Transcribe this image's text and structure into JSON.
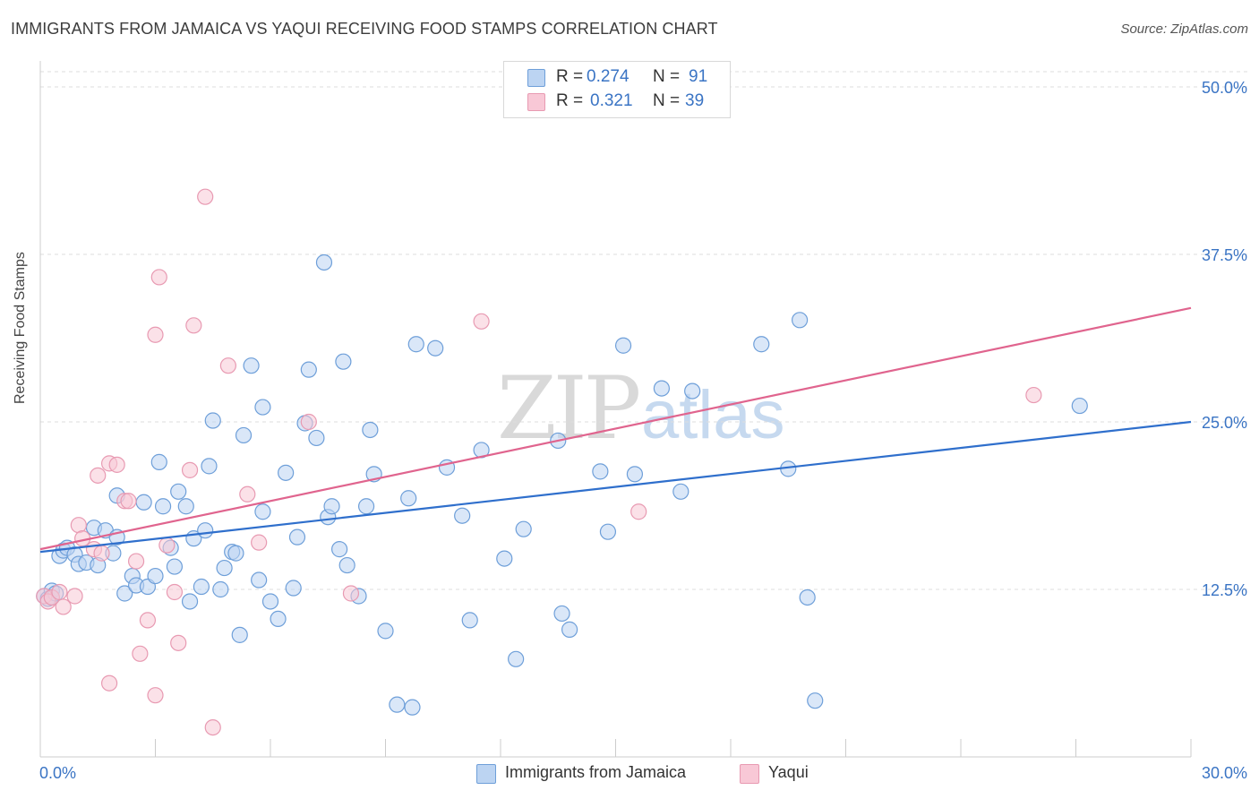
{
  "title": "IMMIGRANTS FROM JAMAICA VS YAQUI RECEIVING FOOD STAMPS CORRELATION CHART",
  "source": "Source: ZipAtlas.com",
  "watermark": {
    "zip": "ZIP",
    "atlas": "atlas"
  },
  "legend": {
    "rows": [
      {
        "r_label": "R =",
        "r_value": "0.274",
        "n_label": "N =",
        "n_value": "91"
      },
      {
        "r_label": "R =",
        "r_value": "0.321",
        "n_label": "N =",
        "n_value": "39"
      }
    ]
  },
  "bottom_legend": {
    "jamaica": "Immigrants from Jamaica",
    "yaqui": "Yaqui"
  },
  "colors": {
    "jamaica_fill": "#bcd4f2",
    "jamaica_stroke": "#6e9fd9",
    "jamaica_line": "#2f6fcc",
    "yaqui_fill": "#f8c8d6",
    "yaqui_stroke": "#e89ab2",
    "yaqui_line": "#e0648e",
    "tick_label": "#3a74c4",
    "grid": "#dddddd"
  },
  "chart_data": {
    "type": "scatter",
    "title": "IMMIGRANTS FROM JAMAICA VS YAQUI RECEIVING FOOD STAMPS CORRELATION CHART",
    "xlabel": "",
    "ylabel": "Receiving Food Stamps",
    "xlim": [
      0,
      30
    ],
    "ylim": [
      0,
      50
    ],
    "x_tick_labels": [
      "0.0%",
      "30.0%"
    ],
    "y_ticks": [
      12.5,
      25.0,
      37.5,
      50.0
    ],
    "y_tick_labels": [
      "12.5%",
      "25.0%",
      "37.5%",
      "50.0%"
    ],
    "grid": true,
    "series": [
      {
        "name": "Immigrants from Jamaica",
        "trend": {
          "x": [
            0,
            30
          ],
          "y": [
            15.3,
            25.0
          ]
        },
        "points": [
          [
            0.1,
            12.0
          ],
          [
            0.2,
            11.8
          ],
          [
            0.3,
            12.4
          ],
          [
            0.3,
            11.9
          ],
          [
            0.4,
            12.2
          ],
          [
            0.5,
            15.0
          ],
          [
            0.6,
            15.4
          ],
          [
            0.7,
            15.6
          ],
          [
            0.9,
            15.1
          ],
          [
            1.0,
            14.4
          ],
          [
            1.2,
            14.5
          ],
          [
            1.4,
            17.1
          ],
          [
            1.5,
            14.3
          ],
          [
            1.7,
            16.9
          ],
          [
            1.9,
            15.2
          ],
          [
            2.0,
            16.4
          ],
          [
            2.0,
            19.5
          ],
          [
            2.2,
            12.2
          ],
          [
            2.4,
            13.5
          ],
          [
            2.5,
            12.8
          ],
          [
            2.7,
            19.0
          ],
          [
            2.8,
            12.7
          ],
          [
            3.0,
            13.5
          ],
          [
            3.1,
            22.0
          ],
          [
            3.2,
            18.7
          ],
          [
            3.4,
            15.6
          ],
          [
            3.5,
            14.2
          ],
          [
            3.6,
            19.8
          ],
          [
            3.8,
            18.7
          ],
          [
            3.9,
            11.6
          ],
          [
            4.0,
            16.3
          ],
          [
            4.2,
            12.7
          ],
          [
            4.3,
            16.9
          ],
          [
            4.4,
            21.7
          ],
          [
            4.5,
            25.1
          ],
          [
            4.7,
            12.5
          ],
          [
            4.8,
            14.1
          ],
          [
            5.0,
            15.3
          ],
          [
            5.1,
            15.2
          ],
          [
            5.2,
            9.1
          ],
          [
            5.3,
            24.0
          ],
          [
            5.5,
            29.2
          ],
          [
            5.7,
            13.2
          ],
          [
            5.8,
            26.1
          ],
          [
            5.8,
            18.3
          ],
          [
            6.0,
            11.6
          ],
          [
            6.2,
            10.3
          ],
          [
            6.4,
            21.2
          ],
          [
            6.6,
            12.6
          ],
          [
            6.7,
            16.4
          ],
          [
            6.9,
            24.9
          ],
          [
            7.0,
            28.9
          ],
          [
            7.2,
            23.8
          ],
          [
            7.4,
            36.9
          ],
          [
            7.5,
            17.9
          ],
          [
            7.6,
            18.7
          ],
          [
            7.8,
            15.5
          ],
          [
            7.9,
            29.5
          ],
          [
            8.0,
            14.3
          ],
          [
            8.3,
            12.0
          ],
          [
            8.5,
            18.7
          ],
          [
            8.6,
            24.4
          ],
          [
            8.7,
            21.1
          ],
          [
            9.0,
            9.4
          ],
          [
            9.3,
            3.9
          ],
          [
            9.6,
            19.3
          ],
          [
            9.7,
            3.7
          ],
          [
            9.8,
            30.8
          ],
          [
            10.3,
            30.5
          ],
          [
            10.6,
            21.6
          ],
          [
            11.0,
            18.0
          ],
          [
            11.2,
            10.2
          ],
          [
            11.5,
            22.9
          ],
          [
            12.1,
            14.8
          ],
          [
            12.4,
            7.3
          ],
          [
            12.6,
            17.0
          ],
          [
            13.5,
            23.6
          ],
          [
            13.6,
            10.7
          ],
          [
            13.8,
            9.5
          ],
          [
            14.6,
            21.3
          ],
          [
            14.8,
            16.8
          ],
          [
            15.2,
            30.7
          ],
          [
            15.5,
            21.1
          ],
          [
            16.2,
            27.5
          ],
          [
            16.7,
            19.8
          ],
          [
            17.0,
            27.3
          ],
          [
            18.8,
            30.8
          ],
          [
            19.5,
            21.5
          ],
          [
            19.8,
            32.6
          ],
          [
            20.0,
            11.9
          ],
          [
            20.2,
            4.2
          ],
          [
            27.1,
            26.2
          ]
        ]
      },
      {
        "name": "Yaqui",
        "trend": {
          "x": [
            0,
            30
          ],
          "y": [
            15.5,
            33.5
          ]
        },
        "points": [
          [
            0.1,
            12.0
          ],
          [
            0.2,
            11.6
          ],
          [
            0.3,
            11.9
          ],
          [
            0.5,
            12.3
          ],
          [
            0.6,
            11.2
          ],
          [
            0.9,
            12.0
          ],
          [
            1.0,
            17.3
          ],
          [
            1.1,
            16.3
          ],
          [
            1.4,
            15.5
          ],
          [
            1.5,
            21.0
          ],
          [
            1.6,
            15.2
          ],
          [
            1.8,
            5.5
          ],
          [
            1.8,
            21.9
          ],
          [
            2.0,
            21.8
          ],
          [
            2.2,
            19.1
          ],
          [
            2.3,
            19.1
          ],
          [
            2.5,
            14.6
          ],
          [
            2.6,
            7.7
          ],
          [
            2.8,
            10.2
          ],
          [
            3.0,
            31.5
          ],
          [
            3.0,
            4.6
          ],
          [
            3.1,
            35.8
          ],
          [
            3.3,
            15.8
          ],
          [
            3.5,
            12.3
          ],
          [
            3.6,
            8.5
          ],
          [
            3.9,
            21.4
          ],
          [
            4.0,
            32.2
          ],
          [
            4.3,
            41.8
          ],
          [
            4.5,
            2.2
          ],
          [
            4.9,
            29.2
          ],
          [
            5.4,
            19.6
          ],
          [
            5.7,
            16.0
          ],
          [
            7.0,
            25.0
          ],
          [
            8.1,
            12.2
          ],
          [
            11.5,
            32.5
          ],
          [
            15.6,
            18.3
          ],
          [
            25.9,
            27.0
          ]
        ]
      }
    ]
  }
}
